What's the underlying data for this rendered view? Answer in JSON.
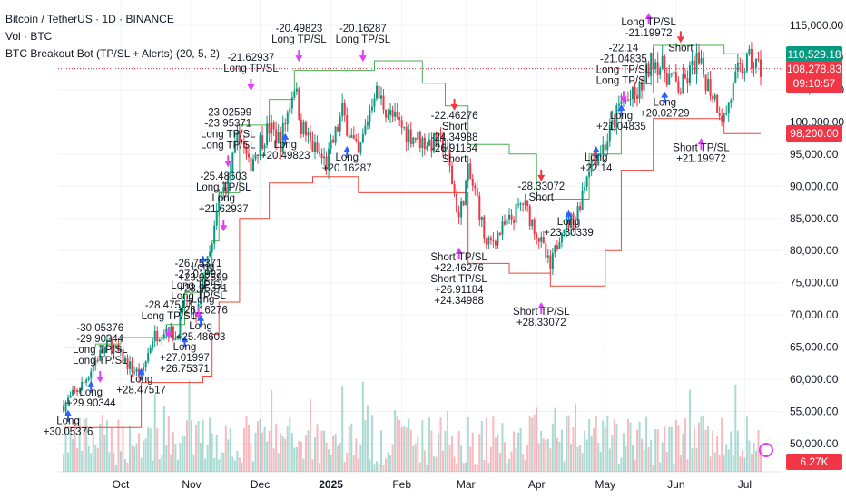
{
  "header": {
    "symbol_line": "Bitcoin / TetherUS · 1D · BINANCE",
    "volume_line": "Vol · BTC",
    "indicator_line": "BTC Breakout Bot (TP/SL + Alerts) (20, 5, 2)"
  },
  "badges": {
    "upper_channel": "110,529.18",
    "last_price": "108,278.83",
    "countdown": "09:10:57",
    "lower_channel": "98,200.00",
    "volume": "6.27K"
  },
  "colors": {
    "up": "#089981",
    "down": "#f23645",
    "upper_line": "#4caf50",
    "lower_line": "#f44336",
    "signal": "#e040fb",
    "long_arrow": "#2962ff",
    "short_arrow": "#f23645"
  },
  "chart_data": {
    "type": "candlestick",
    "yaxis": {
      "ticks": [
        50000,
        55000,
        60000,
        65000,
        70000,
        75000,
        80000,
        85000,
        90000,
        95000,
        100000,
        105000,
        110000,
        115000
      ],
      "tick_labels": [
        "50,000.00",
        "55,000.00",
        "60,000.00",
        "65,000.00",
        "70,000.00",
        "75,000.00",
        "80,000.00",
        "85,000.00",
        "90,000.00",
        "95,000.00",
        "100,000.00",
        "105,000.00",
        "110,000.00",
        "115,000.00"
      ],
      "range": [
        48000,
        116500
      ]
    },
    "xaxis": {
      "labels": [
        {
          "text": "Oct",
          "date": "2024-10-01"
        },
        {
          "text": "Nov",
          "date": "2024-11-01"
        },
        {
          "text": "Dec",
          "date": "2024-12-01"
        },
        {
          "text": "2025",
          "date": "2025-01-01",
          "bold": true
        },
        {
          "text": "Feb",
          "date": "2025-02-01"
        },
        {
          "text": "Mar",
          "date": "2025-03-01"
        },
        {
          "text": "Apr",
          "date": "2025-04-01"
        },
        {
          "text": "May",
          "date": "2025-05-01"
        },
        {
          "text": "Jun",
          "date": "2025-06-01"
        },
        {
          "text": "Jul",
          "date": "2025-07-01"
        }
      ],
      "range": [
        "2024-09-06",
        "2025-07-08"
      ]
    },
    "price_path": [
      [
        "2024-09-06",
        56000
      ],
      [
        "2024-09-10",
        57500
      ],
      [
        "2024-09-15",
        59500
      ],
      [
        "2024-09-20",
        63000
      ],
      [
        "2024-09-26",
        65500
      ],
      [
        "2024-09-30",
        64000
      ],
      [
        "2024-10-05",
        62000
      ],
      [
        "2024-10-10",
        60500
      ],
      [
        "2024-10-15",
        66500
      ],
      [
        "2024-10-21",
        68000
      ],
      [
        "2024-10-25",
        66500
      ],
      [
        "2024-10-29",
        72500
      ],
      [
        "2024-11-03",
        69000
      ],
      [
        "2024-11-06",
        75500
      ],
      [
        "2024-11-10",
        80500
      ],
      [
        "2024-11-13",
        88000
      ],
      [
        "2024-11-17",
        91000
      ],
      [
        "2024-11-22",
        98500
      ],
      [
        "2024-11-26",
        93000
      ],
      [
        "2024-12-01",
        97000
      ],
      [
        "2024-12-05",
        99000
      ],
      [
        "2024-12-10",
        97000
      ],
      [
        "2024-12-16",
        106000
      ],
      [
        "2024-12-19",
        99500
      ],
      [
        "2024-12-24",
        96000
      ],
      [
        "2024-12-30",
        93500
      ],
      [
        "2025-01-06",
        101500
      ],
      [
        "2025-01-13",
        94500
      ],
      [
        "2025-01-20",
        105000
      ],
      [
        "2025-01-27",
        101000
      ],
      [
        "2025-02-03",
        98500
      ],
      [
        "2025-02-10",
        97000
      ],
      [
        "2025-02-20",
        96500
      ],
      [
        "2025-02-26",
        85000
      ],
      [
        "2025-03-02",
        92000
      ],
      [
        "2025-03-06",
        88000
      ],
      [
        "2025-03-10",
        80500
      ],
      [
        "2025-03-20",
        84500
      ],
      [
        "2025-03-26",
        87500
      ],
      [
        "2025-04-01",
        83000
      ],
      [
        "2025-04-07",
        77000
      ],
      [
        "2025-04-12",
        84000
      ],
      [
        "2025-04-18",
        85000
      ],
      [
        "2025-04-24",
        93500
      ],
      [
        "2025-05-01",
        96500
      ],
      [
        "2025-05-08",
        103000
      ],
      [
        "2025-05-15",
        104000
      ],
      [
        "2025-05-22",
        110000
      ],
      [
        "2025-05-28",
        107500
      ],
      [
        "2025-06-03",
        105000
      ],
      [
        "2025-06-10",
        109500
      ],
      [
        "2025-06-17",
        104500
      ],
      [
        "2025-06-22",
        100500
      ],
      [
        "2025-06-28",
        107500
      ],
      [
        "2025-07-03",
        109500
      ],
      [
        "2025-07-08",
        108278.83
      ]
    ],
    "upper_channel": [
      [
        "2024-09-06",
        65000
      ],
      [
        "2024-09-15",
        65000
      ],
      [
        "2024-09-20",
        65500
      ],
      [
        "2024-10-01",
        66500
      ],
      [
        "2024-10-15",
        66500
      ],
      [
        "2024-10-21",
        68500
      ],
      [
        "2024-10-29",
        73500
      ],
      [
        "2024-11-06",
        76500
      ],
      [
        "2024-11-10",
        81500
      ],
      [
        "2024-11-13",
        89000
      ],
      [
        "2024-11-22",
        99500
      ],
      [
        "2024-12-05",
        103500
      ],
      [
        "2024-12-16",
        108000
      ],
      [
        "2025-01-20",
        109500
      ],
      [
        "2025-02-10",
        106000
      ],
      [
        "2025-02-20",
        102500
      ],
      [
        "2025-03-02",
        96500
      ],
      [
        "2025-03-20",
        95000
      ],
      [
        "2025-04-01",
        88000
      ],
      [
        "2025-04-24",
        95000
      ],
      [
        "2025-05-08",
        104500
      ],
      [
        "2025-05-22",
        111900
      ],
      [
        "2025-06-22",
        110600
      ],
      [
        "2025-07-08",
        110529.18
      ]
    ],
    "lower_channel": [
      [
        "2024-09-06",
        52500
      ],
      [
        "2024-10-10",
        59500
      ],
      [
        "2024-11-03",
        59500
      ],
      [
        "2024-11-06",
        60500
      ],
      [
        "2024-11-10",
        67000
      ],
      [
        "2024-11-13",
        72000
      ],
      [
        "2024-11-22",
        85000
      ],
      [
        "2024-12-05",
        90500
      ],
      [
        "2024-12-24",
        91500
      ],
      [
        "2025-01-13",
        89000
      ],
      [
        "2025-02-26",
        89000
      ],
      [
        "2025-03-02",
        78000
      ],
      [
        "2025-03-20",
        76500
      ],
      [
        "2025-04-07",
        74500
      ],
      [
        "2025-04-24",
        74500
      ],
      [
        "2025-05-01",
        80000
      ],
      [
        "2025-05-08",
        92500
      ],
      [
        "2025-05-22",
        100500
      ],
      [
        "2025-06-22",
        98200
      ],
      [
        "2025-07-08",
        98200
      ]
    ],
    "annotations": [
      {
        "date": "2024-09-08",
        "price": 53000,
        "lines": [
          "Long",
          "+30.05376"
        ]
      },
      {
        "date": "2024-09-18",
        "price": 57500,
        "lines": [
          "Long",
          "+29.90344"
        ]
      },
      {
        "date": "2024-09-22",
        "price": 67500,
        "lines": [
          "-30.05376",
          "-29.90344",
          "Long TP/SL",
          "Long TP/SL"
        ]
      },
      {
        "date": "2024-10-10",
        "price": 59500,
        "lines": [
          "Long",
          "+28.47517"
        ]
      },
      {
        "date": "2024-10-22",
        "price": 71000,
        "lines": [
          "-28.47517",
          "Long TP/SL"
        ]
      },
      {
        "date": "2024-10-29",
        "price": 64500,
        "lines": [
          "Long",
          "+27.01997",
          "+26.75371"
        ]
      },
      {
        "date": "2024-11-04",
        "price": 77500,
        "lines": [
          "-26.75371",
          "-27.01997",
          "Long TP/SL",
          "Long TP/SL"
        ]
      },
      {
        "date": "2024-11-05",
        "price": 67800,
        "lines": [
          "Long",
          "+25.48603"
        ]
      },
      {
        "date": "2024-11-06",
        "price": 77000,
        "lines": [
          "Long",
          "+23.02599",
          "+23.95371",
          "Long",
          "+26.16276"
        ]
      },
      {
        "date": "2024-11-15",
        "price": 91000,
        "lines": [
          "-25.48603",
          "Long TP/SL",
          "Long",
          "+21.62937"
        ]
      },
      {
        "date": "2024-11-17",
        "price": 101000,
        "lines": [
          "-23.02599",
          "-23.95371",
          "Long TP/SL",
          "Long TP/SL"
        ]
      },
      {
        "date": "2024-11-27",
        "price": 109500,
        "lines": [
          "-21.62937",
          "Long TP/SL"
        ]
      },
      {
        "date": "2024-12-12",
        "price": 96000,
        "lines": [
          "Long",
          "+20.49823"
        ]
      },
      {
        "date": "2024-12-18",
        "price": 114000,
        "lines": [
          "-20.49823",
          "Long TP/SL"
        ]
      },
      {
        "date": "2025-01-08",
        "price": 94000,
        "lines": [
          "Long",
          "+20.16287"
        ]
      },
      {
        "date": "2025-01-15",
        "price": 114000,
        "lines": [
          "-20.16287",
          "Long TP/SL"
        ]
      },
      {
        "date": "2025-02-24",
        "price": 100500,
        "lines": [
          "-22.46276",
          "Short",
          "-24.34988",
          "-26.91184",
          "Short"
        ]
      },
      {
        "date": "2025-02-26",
        "price": 78500,
        "lines": [
          "Short TP/SL",
          "+22.46276",
          "Short TP/SL",
          "+26.91184",
          "+24.34988"
        ]
      },
      {
        "date": "2025-04-03",
        "price": 89500,
        "lines": [
          "-28.33072",
          "Short"
        ]
      },
      {
        "date": "2025-04-03",
        "price": 70000,
        "lines": [
          "Short TP/SL",
          "+28.33072"
        ]
      },
      {
        "date": "2025-04-15",
        "price": 84000,
        "lines": [
          "Long",
          "+23.30339"
        ]
      },
      {
        "date": "2025-04-27",
        "price": 94000,
        "lines": [
          "Long",
          "+22.14"
        ]
      },
      {
        "date": "2025-05-08",
        "price": 100500,
        "lines": [
          "Long",
          "+21.04835"
        ]
      },
      {
        "date": "2025-05-09",
        "price": 111000,
        "lines": [
          "-22.14",
          "-21.04835",
          "Long TP/SL",
          "Long TP/SL"
        ]
      },
      {
        "date": "2025-05-20",
        "price": 115000,
        "lines": [
          "Long TP/SL",
          "-21.19972"
        ]
      },
      {
        "date": "2025-05-27",
        "price": 102500,
        "lines": [
          "Long",
          "+20.02729"
        ]
      },
      {
        "date": "2025-06-03",
        "price": 111000,
        "lines": [
          "Short"
        ]
      },
      {
        "date": "2025-06-12",
        "price": 95500,
        "lines": [
          "Short TP/SL",
          "+21.19972"
        ]
      }
    ]
  }
}
